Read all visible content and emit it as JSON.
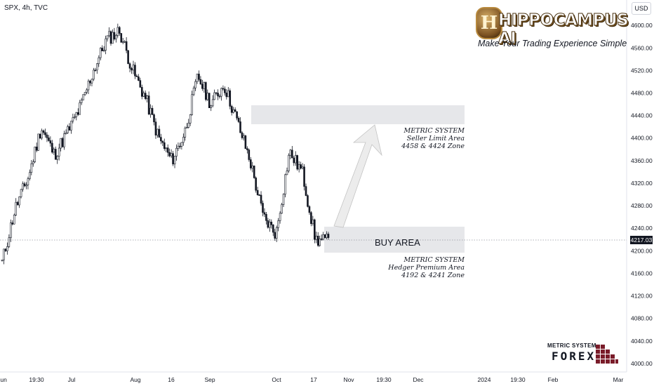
{
  "header": {
    "symbol": "SPX, 4h, TVC",
    "currency": "USD"
  },
  "branding": {
    "logo_emblem_letter": "H",
    "logo_text": "HIPPOCAMPUS AI",
    "tagline": "Make Your Trading Experience Simple",
    "forex_top": "METRIC SYSTEM",
    "forex_main": "FOREX"
  },
  "zones": {
    "seller": {
      "line1": "METRIC SYSTEM",
      "line2": "Seller Limit Area",
      "line3": "4458 & 4424 Zone"
    },
    "buyer": {
      "label": "BUY AREA",
      "line1": "METRIC SYSTEM",
      "line2": "Hedger Premium Area",
      "line3": "4192 & 4241 Zone"
    }
  },
  "current_price": "4217.03",
  "colors": {
    "zone_fill": "#e6e7ea",
    "candle": "#131722",
    "arrow_fill": "#ececec",
    "arrow_stroke": "#c3c3c3"
  },
  "chart_data": {
    "type": "candlestick",
    "symbol": "SPX",
    "interval": "4h",
    "y_axis": {
      "range": [
        3985,
        4645
      ],
      "ticks": [
        "4600.00",
        "4560.00",
        "4520.00",
        "4480.00",
        "4440.00",
        "4400.00",
        "4360.00",
        "4320.00",
        "4280.00",
        "4240.00",
        "4200.00",
        "4160.00",
        "4120.00",
        "4080.00",
        "4040.00",
        "4000.00"
      ]
    },
    "x_axis": {
      "labels": [
        "Jun",
        "19:30",
        "Jul",
        "Aug",
        "16",
        "Sep",
        "Oct",
        "17",
        "Nov",
        "19:30",
        "Dec",
        "2024",
        "19:30",
        "Feb",
        "Mar"
      ]
    },
    "key_prices": [
      {
        "date": "Jun",
        "close": 4180
      },
      {
        "date": "Jun",
        "close": 4275
      },
      {
        "date": "Jun",
        "close": 4330
      },
      {
        "date": "Jun",
        "close": 4420
      },
      {
        "date": "Jun",
        "close": 4370
      },
      {
        "date": "Jul",
        "close": 4410
      },
      {
        "date": "Jul",
        "close": 4455
      },
      {
        "date": "Jul",
        "close": 4520
      },
      {
        "date": "Jul",
        "close": 4575
      },
      {
        "date": "Jul",
        "close": 4590
      },
      {
        "date": "Aug",
        "close": 4520
      },
      {
        "date": "Aug",
        "close": 4470
      },
      {
        "date": "Aug",
        "close": 4400
      },
      {
        "date": "16",
        "close": 4360
      },
      {
        "date": "16",
        "close": 4410
      },
      {
        "date": "Sep",
        "close": 4510
      },
      {
        "date": "Sep",
        "close": 4460
      },
      {
        "date": "Sep",
        "close": 4495
      },
      {
        "date": "Sep",
        "close": 4430
      },
      {
        "date": "Oct",
        "close": 4360
      },
      {
        "date": "Oct",
        "close": 4260
      },
      {
        "date": "Oct",
        "close": 4230
      },
      {
        "date": "17",
        "close": 4375
      },
      {
        "date": "17",
        "close": 4340
      },
      {
        "date": "17",
        "close": 4220
      },
      {
        "date": "17",
        "close": 4217
      }
    ],
    "current_price": 4217.03,
    "seller_zone": [
      4424,
      4458
    ],
    "buyer_zone": [
      4192,
      4241
    ]
  }
}
